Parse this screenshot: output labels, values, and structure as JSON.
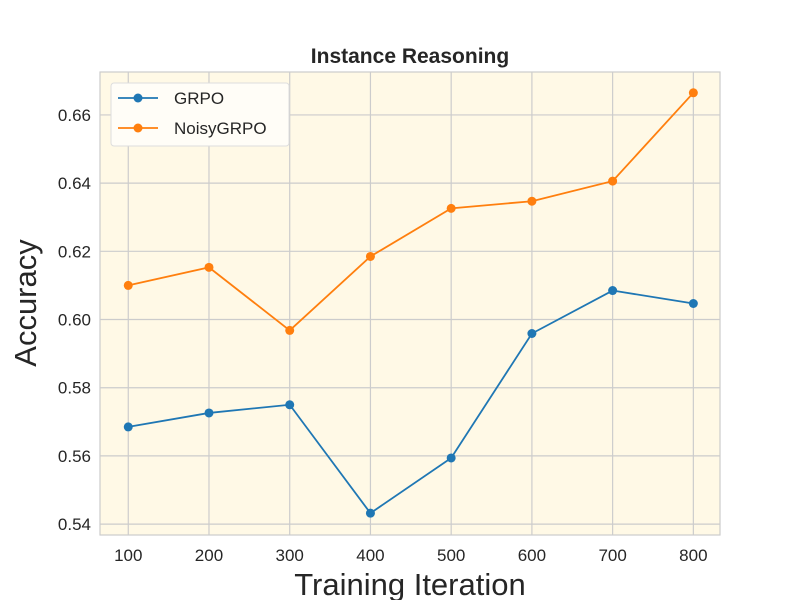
{
  "chart_data": {
    "type": "line",
    "title": "Instance Reasoning",
    "xlabel": "Training Iteration",
    "ylabel": "Accuracy",
    "x": [
      100,
      200,
      300,
      400,
      500,
      600,
      700,
      800
    ],
    "xlim": [
      65,
      833
    ],
    "ylim": [
      0.5368,
      0.6726
    ],
    "xticks": [
      100,
      200,
      300,
      400,
      500,
      600,
      700,
      800
    ],
    "yticks": [
      0.54,
      0.56,
      0.58,
      0.6,
      0.62,
      0.64,
      0.66
    ],
    "ytick_labels": [
      "0.54",
      "0.56",
      "0.58",
      "0.60",
      "0.62",
      "0.64",
      "0.66"
    ],
    "grid": true,
    "background": "#fff9e6",
    "legend_position": "top-left",
    "series": [
      {
        "name": "GRPO",
        "color": "#1f77b4",
        "marker": "circle",
        "values": [
          0.5685,
          0.5726,
          0.575,
          0.5432,
          0.5594,
          0.5959,
          0.6085,
          0.6047
        ]
      },
      {
        "name": "NoisyGRPO",
        "color": "#ff7f0e",
        "marker": "circle",
        "values": [
          0.61,
          0.6153,
          0.5968,
          0.6185,
          0.6326,
          0.6347,
          0.6406,
          0.6665
        ]
      }
    ]
  }
}
